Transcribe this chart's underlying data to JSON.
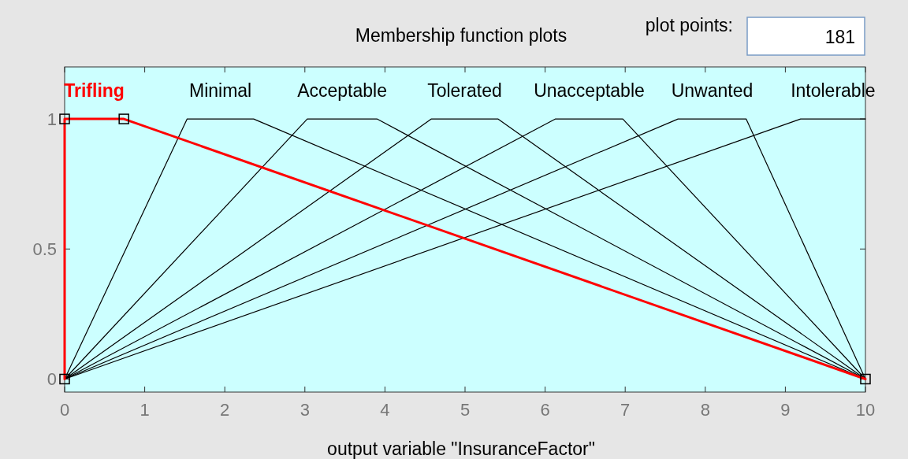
{
  "chart_data": {
    "type": "line",
    "title": "Membership function plots",
    "xlabel": "output variable \"InsuranceFactor\"",
    "annotations": [
      "plot points:",
      "181"
    ],
    "xlim": [
      0,
      10
    ],
    "ylim": [
      -0.05,
      1.2
    ],
    "xticks": [
      0,
      1,
      2,
      3,
      4,
      5,
      6,
      7,
      8,
      9,
      10
    ],
    "yticks": [
      0,
      0.5,
      1
    ],
    "grid": false,
    "series": [
      {
        "name": "Trifling",
        "color": "#ff0000",
        "marker": "square",
        "x": [
          0,
          0,
          0.74,
          10
        ],
        "values": [
          0,
          1,
          1,
          0
        ]
      },
      {
        "name": "Minimal",
        "color": "#000000",
        "x": [
          0,
          1.53,
          2.36,
          10
        ],
        "values": [
          0,
          1,
          1,
          0
        ]
      },
      {
        "name": "Acceptable",
        "color": "#000000",
        "x": [
          0,
          3.03,
          3.9,
          10
        ],
        "values": [
          0,
          1,
          1,
          0
        ]
      },
      {
        "name": "Tolerated",
        "color": "#000000",
        "x": [
          0,
          4.58,
          5.41,
          10
        ],
        "values": [
          0,
          1,
          1,
          0
        ]
      },
      {
        "name": "Unacceptable",
        "color": "#000000",
        "x": [
          0,
          6.13,
          6.97,
          10
        ],
        "values": [
          0,
          1,
          1,
          0
        ]
      },
      {
        "name": "Unwanted",
        "color": "#000000",
        "x": [
          0,
          7.66,
          8.51,
          10
        ],
        "values": [
          0,
          1,
          1,
          0
        ]
      },
      {
        "name": "Intolerable",
        "color": "#000000",
        "x": [
          0,
          9.19,
          10,
          10
        ],
        "values": [
          0,
          1,
          1,
          1
        ]
      }
    ]
  }
}
